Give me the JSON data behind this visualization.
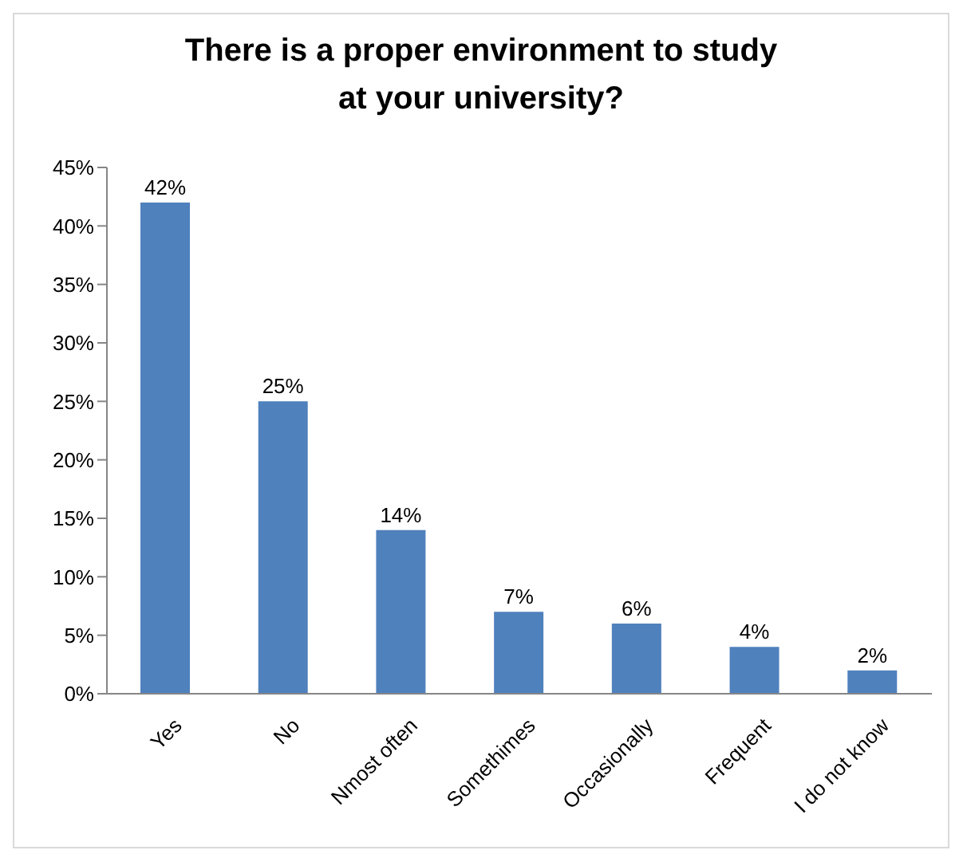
{
  "chart_data": {
    "type": "bar",
    "title": "There is a proper environment to study at your university?",
    "categories": [
      "Yes",
      "No",
      "Nmost often",
      "Somethimes",
      "Occasionally",
      "Frequent",
      "I do not know"
    ],
    "values": [
      42,
      25,
      14,
      7,
      6,
      4,
      2
    ],
    "value_labels": [
      "42%",
      "25%",
      "14%",
      "7%",
      "6%",
      "4%",
      "2%"
    ],
    "color": "#4f81bd",
    "ylim": [
      0,
      45
    ],
    "yticks": [
      {
        "value": 0,
        "label": "0%"
      },
      {
        "value": 5,
        "label": "5%"
      },
      {
        "value": 10,
        "label": "10%"
      },
      {
        "value": 15,
        "label": "15%"
      },
      {
        "value": 20,
        "label": "20%"
      },
      {
        "value": 25,
        "label": "25%"
      },
      {
        "value": 30,
        "label": "30%"
      },
      {
        "value": 35,
        "label": "35%"
      },
      {
        "value": 40,
        "label": "40%"
      },
      {
        "value": 45,
        "label": "45%"
      }
    ],
    "grid": false,
    "legend": false
  }
}
